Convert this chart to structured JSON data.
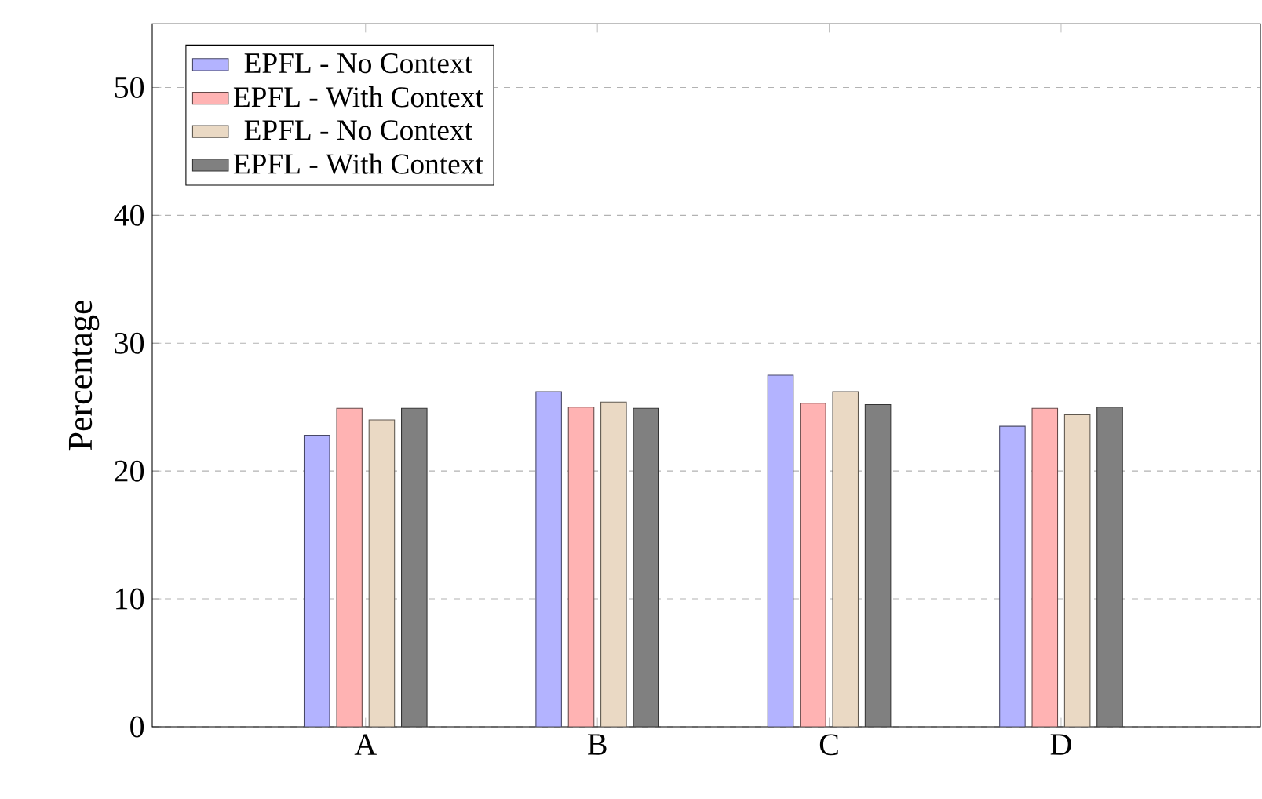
{
  "chart_data": {
    "type": "bar",
    "ylabel": "Percentage",
    "categories": [
      "A",
      "B",
      "C",
      "D"
    ],
    "series": [
      {
        "name": "EPFL - No Context",
        "color": "#b3b3ff",
        "values": [
          22.8,
          26.2,
          27.5,
          23.5
        ]
      },
      {
        "name": "EPFL - With Context",
        "color": "#ffb3b3",
        "values": [
          24.9,
          25.0,
          25.3,
          24.9
        ]
      },
      {
        "name": "EPFL - No Context",
        "color": "#ead9c4",
        "values": [
          24.0,
          25.4,
          26.2,
          24.4
        ]
      },
      {
        "name": "EPFL - With Context",
        "color": "#808080",
        "values": [
          24.9,
          24.9,
          25.2,
          25.0
        ]
      }
    ],
    "ylim": [
      0,
      55
    ],
    "yticks": [
      0,
      10,
      20,
      30,
      40,
      50
    ],
    "grid": "y",
    "legend": "top left"
  }
}
